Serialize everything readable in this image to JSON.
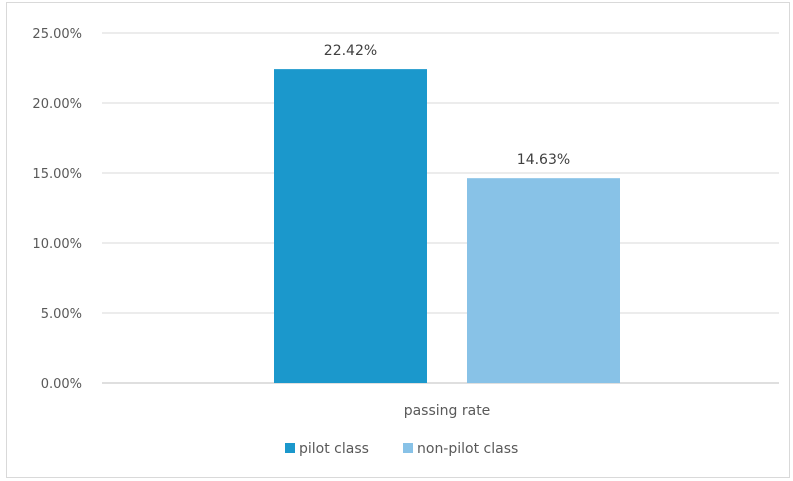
{
  "chart_data": {
    "type": "bar",
    "categories": [
      "passing rate"
    ],
    "series": [
      {
        "name": "pilot class",
        "values": [
          22.42
        ],
        "color": "#1b98cc"
      },
      {
        "name": "non-pilot class",
        "values": [
          14.63
        ],
        "color": "#88c2e7"
      }
    ],
    "data_labels": [
      "22.42%",
      "14.63%"
    ],
    "ylim": [
      0,
      25
    ],
    "yticks": [
      0,
      5,
      10,
      15,
      20,
      25
    ],
    "ytick_labels": [
      "0.00%",
      "5.00%",
      "10.00%",
      "15.00%",
      "20.00%",
      "25.00%"
    ],
    "grid": true,
    "legend_position": "bottom",
    "title": "",
    "xlabel": "",
    "ylabel": ""
  }
}
